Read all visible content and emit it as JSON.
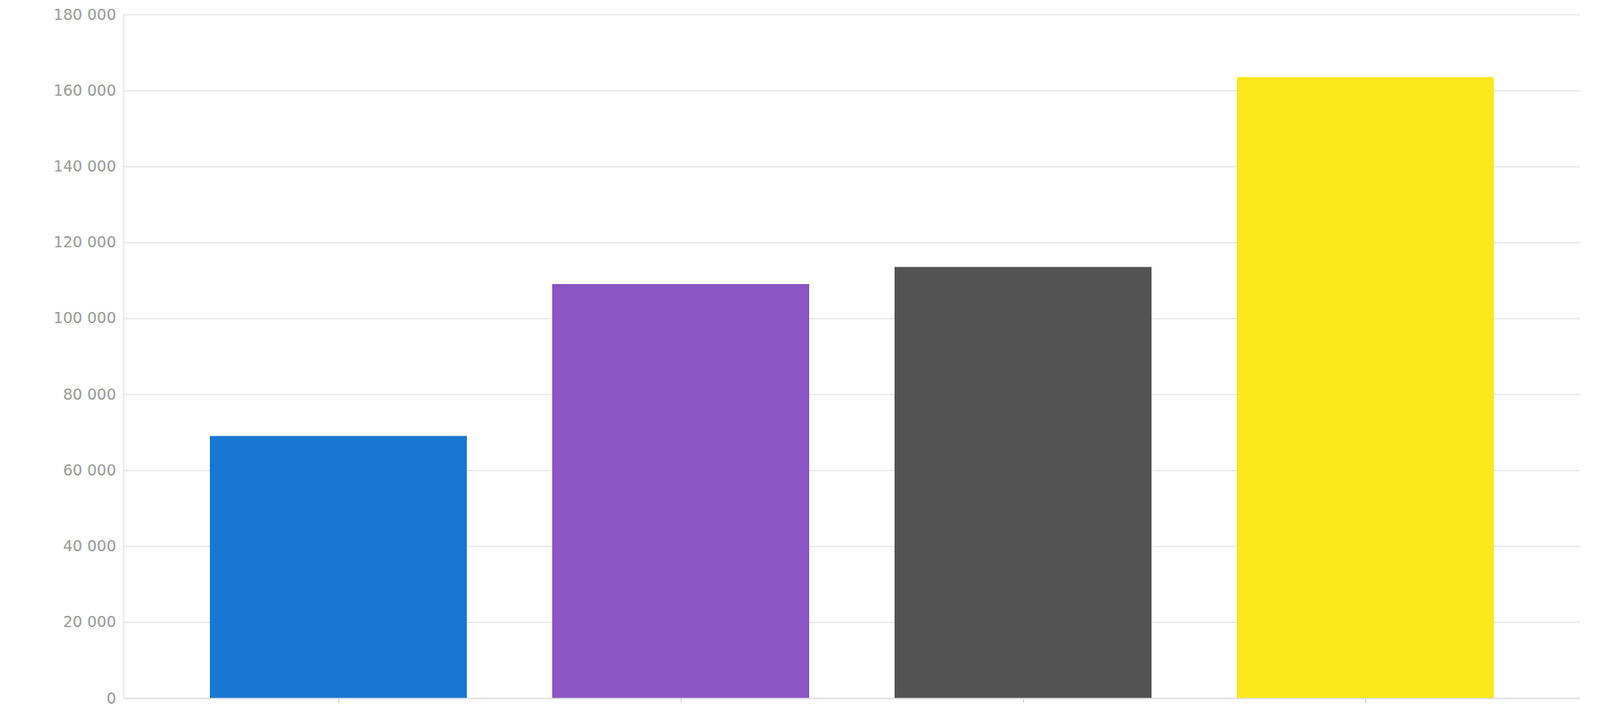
{
  "chart_data": {
    "type": "bar",
    "categories": [
      null,
      null,
      null,
      null
    ],
    "values": [
      69000,
      109000,
      113500,
      163500
    ],
    "colors": [
      "#1976d2",
      "#8b55c4",
      "#535353",
      "#fce91b"
    ],
    "ylim": [
      0,
      180000
    ],
    "yticks": [
      0,
      {
        "value": 20000,
        "label": "20 000"
      },
      {
        "value": 40000,
        "label": "40 000"
      },
      {
        "value": 60000,
        "label": "60 000"
      },
      {
        "value": 80000,
        "label": "80 000"
      },
      {
        "value": 100000,
        "label": "100 000"
      },
      {
        "value": 120000,
        "label": "120 000"
      },
      {
        "value": 140000,
        "label": "140 000"
      },
      {
        "value": 160000,
        "label": "160 000"
      },
      {
        "value": 180000,
        "label": "180 000"
      }
    ],
    "grid": true,
    "tick_labels": "y"
  }
}
